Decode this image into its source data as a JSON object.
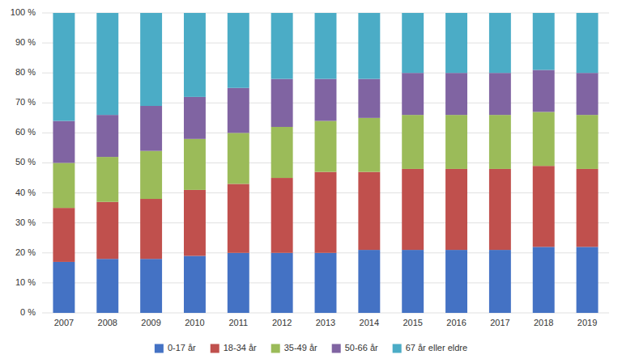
{
  "chart_data": {
    "type": "bar",
    "stacked": true,
    "grid": true,
    "legend": "bottom",
    "categories": [
      "2007",
      "2008",
      "2009",
      "2010",
      "2011",
      "2012",
      "2013",
      "2014",
      "2015",
      "2016",
      "2017",
      "2018",
      "2019"
    ],
    "series": [
      {
        "name": "0-17 år",
        "color": "#4472c4",
        "values": [
          17,
          18,
          18,
          19,
          20,
          20,
          20,
          21,
          21,
          21,
          21,
          22,
          22
        ]
      },
      {
        "name": "18-34 år",
        "color": "#c0504d",
        "values": [
          18,
          19,
          20,
          22,
          23,
          25,
          27,
          26,
          27,
          27,
          27,
          27,
          26
        ]
      },
      {
        "name": "35-49 år",
        "color": "#9bbb59",
        "values": [
          15,
          15,
          16,
          17,
          17,
          17,
          17,
          18,
          18,
          18,
          18,
          18,
          18
        ]
      },
      {
        "name": "50-66 år",
        "color": "#8064a2",
        "values": [
          14,
          14,
          15,
          14,
          15,
          16,
          14,
          13,
          14,
          14,
          14,
          14,
          14
        ]
      },
      {
        "name": "67 år eller eldre",
        "color": "#4bacc6",
        "values": [
          36,
          34,
          31,
          28,
          25,
          22,
          22,
          22,
          20,
          20,
          20,
          19,
          20
        ]
      }
    ],
    "ylim": [
      0,
      100
    ],
    "yticks": [
      {
        "value": 0,
        "label": "0 %"
      },
      {
        "value": 10,
        "label": "10 %"
      },
      {
        "value": 20,
        "label": "20 %"
      },
      {
        "value": 30,
        "label": "30 %"
      },
      {
        "value": 40,
        "label": "40 %"
      },
      {
        "value": 50,
        "label": "50 %"
      },
      {
        "value": 60,
        "label": "60 %"
      },
      {
        "value": 70,
        "label": "70 %"
      },
      {
        "value": 80,
        "label": "80 %"
      },
      {
        "value": 90,
        "label": "90 %"
      },
      {
        "value": 100,
        "label": "100 %"
      }
    ]
  }
}
